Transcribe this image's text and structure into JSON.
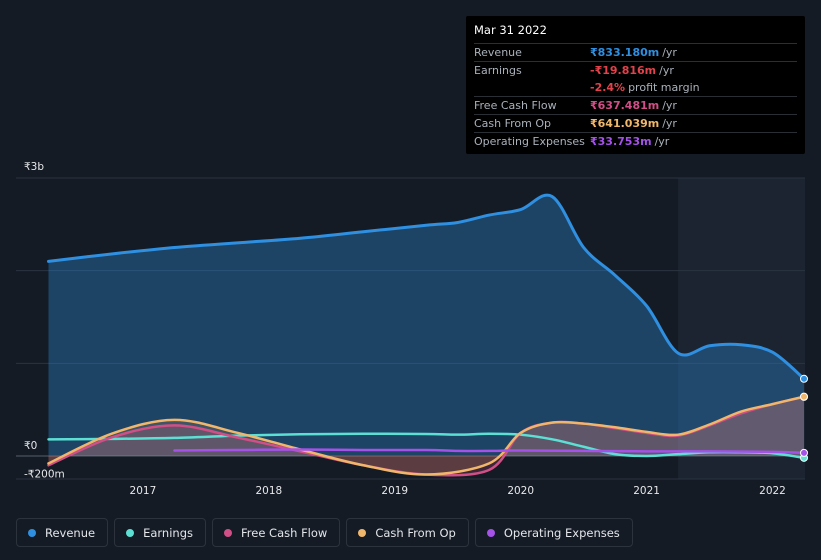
{
  "chart_data": {
    "type": "line",
    "currency": "₹",
    "x_ticks": [
      "2017",
      "2018",
      "2019",
      "2020",
      "2021",
      "2022"
    ],
    "y_ticks": [
      "₹3b",
      "₹0",
      "-₹200m"
    ],
    "ylim": [
      -200,
      3000
    ],
    "y_unit": "₹m",
    "grid": true,
    "highlight_from": 2021.25,
    "series": [
      {
        "name": "Revenue",
        "color": "#2f8fe0",
        "fill": true,
        "points": [
          [
            2016.25,
            2100
          ],
          [
            2016.75,
            2180
          ],
          [
            2017.25,
            2250
          ],
          [
            2017.75,
            2300
          ],
          [
            2018.25,
            2350
          ],
          [
            2018.75,
            2420
          ],
          [
            2019.25,
            2490
          ],
          [
            2019.5,
            2520
          ],
          [
            2019.75,
            2600
          ],
          [
            2020.0,
            2660
          ],
          [
            2020.25,
            2800
          ],
          [
            2020.5,
            2250
          ],
          [
            2020.75,
            1950
          ],
          [
            2021.0,
            1620
          ],
          [
            2021.25,
            1110
          ],
          [
            2021.5,
            1190
          ],
          [
            2021.75,
            1200
          ],
          [
            2022.0,
            1120
          ],
          [
            2022.25,
            833.18
          ]
        ]
      },
      {
        "name": "Earnings",
        "color": "#5ce0d4",
        "fill": false,
        "points": [
          [
            2016.25,
            180
          ],
          [
            2016.75,
            185
          ],
          [
            2017.25,
            195
          ],
          [
            2017.75,
            220
          ],
          [
            2018.25,
            235
          ],
          [
            2018.75,
            240
          ],
          [
            2019.25,
            238
          ],
          [
            2019.5,
            230
          ],
          [
            2019.75,
            240
          ],
          [
            2020.0,
            230
          ],
          [
            2020.25,
            180
          ],
          [
            2020.5,
            100
          ],
          [
            2020.75,
            20
          ],
          [
            2021.0,
            0
          ],
          [
            2021.25,
            20
          ],
          [
            2021.5,
            40
          ],
          [
            2021.75,
            40
          ],
          [
            2022.0,
            30
          ],
          [
            2022.25,
            -19.816
          ]
        ]
      },
      {
        "name": "Free Cash Flow",
        "color": "#d14f86",
        "fill": true,
        "points": [
          [
            2016.25,
            -100
          ],
          [
            2016.75,
            200
          ],
          [
            2017.25,
            330
          ],
          [
            2017.75,
            200
          ],
          [
            2018.25,
            50
          ],
          [
            2018.75,
            -100
          ],
          [
            2019.25,
            -200
          ],
          [
            2019.75,
            -150
          ],
          [
            2020.0,
            250
          ],
          [
            2020.25,
            360
          ],
          [
            2020.5,
            350
          ],
          [
            2020.75,
            300
          ],
          [
            2021.0,
            250
          ],
          [
            2021.25,
            220
          ],
          [
            2021.5,
            330
          ],
          [
            2021.75,
            460
          ],
          [
            2022.0,
            560
          ],
          [
            2022.25,
            637.481
          ]
        ]
      },
      {
        "name": "Cash From Op",
        "color": "#f0b66b",
        "fill": true,
        "points": [
          [
            2016.25,
            -80
          ],
          [
            2016.75,
            240
          ],
          [
            2017.25,
            390
          ],
          [
            2017.75,
            250
          ],
          [
            2018.25,
            70
          ],
          [
            2018.75,
            -100
          ],
          [
            2019.25,
            -200
          ],
          [
            2019.75,
            -80
          ],
          [
            2020.0,
            250
          ],
          [
            2020.25,
            360
          ],
          [
            2020.5,
            350
          ],
          [
            2020.75,
            310
          ],
          [
            2021.0,
            260
          ],
          [
            2021.25,
            230
          ],
          [
            2021.5,
            340
          ],
          [
            2021.75,
            480
          ],
          [
            2022.0,
            560
          ],
          [
            2022.25,
            641.039
          ]
        ]
      },
      {
        "name": "Operating Expenses",
        "color": "#a452e8",
        "fill": false,
        "points": [
          [
            2017.25,
            60
          ],
          [
            2017.75,
            65
          ],
          [
            2018.25,
            70
          ],
          [
            2018.75,
            65
          ],
          [
            2019.25,
            65
          ],
          [
            2019.5,
            55
          ],
          [
            2019.75,
            55
          ],
          [
            2020.0,
            60
          ],
          [
            2020.5,
            55
          ],
          [
            2021.0,
            50
          ],
          [
            2021.5,
            50
          ],
          [
            2022.0,
            45
          ],
          [
            2022.25,
            33.753
          ]
        ]
      }
    ]
  },
  "tooltip": {
    "date": "Mar 31 2022",
    "rows": [
      {
        "label": "Revenue",
        "value": "₹833.180m",
        "unit": "/yr",
        "color": "#2f8fe0"
      },
      {
        "label": "Earnings",
        "value": "-₹19.816m",
        "unit": "/yr",
        "color": "#e0434b"
      },
      {
        "label": "",
        "value": "-2.4%",
        "unit": "profit margin",
        "color": "#e0434b"
      },
      {
        "label": "Free Cash Flow",
        "value": "₹637.481m",
        "unit": "/yr",
        "color": "#d14f86"
      },
      {
        "label": "Cash From Op",
        "value": "₹641.039m",
        "unit": "/yr",
        "color": "#f0b66b"
      },
      {
        "label": "Operating Expenses",
        "value": "₹33.753m",
        "unit": "/yr",
        "color": "#a452e8"
      }
    ]
  },
  "legend": [
    {
      "label": "Revenue",
      "color": "#2f8fe0"
    },
    {
      "label": "Earnings",
      "color": "#5ce0d4"
    },
    {
      "label": "Free Cash Flow",
      "color": "#d14f86"
    },
    {
      "label": "Cash From Op",
      "color": "#f0b66b"
    },
    {
      "label": "Operating Expenses",
      "color": "#a452e8"
    }
  ]
}
